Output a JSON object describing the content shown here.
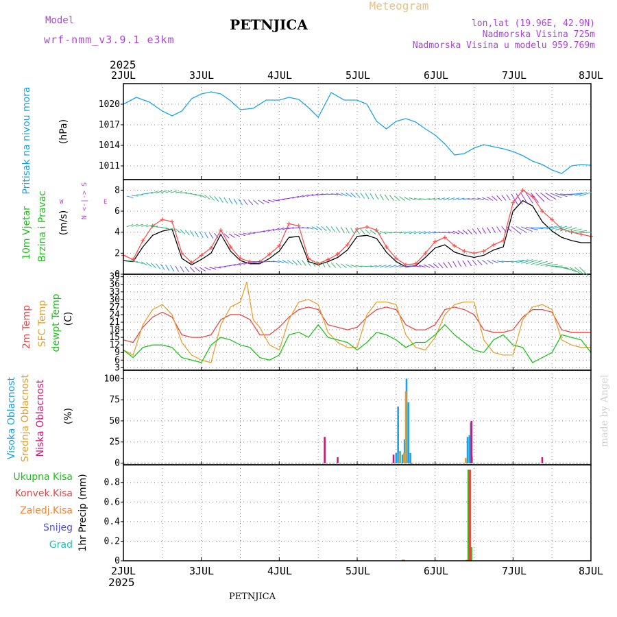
{
  "header": {
    "model_label": "Model",
    "model_name": "wrf-nmm_v3.9.1 e3km",
    "location": "PETNJICA",
    "product": "Meteogram",
    "lonlat": "lon,lat (19.96E, 42.9N)",
    "elevation": "Nadmorska Visina 725m",
    "model_elevation": "Nadmorska Visina u modelu 959.769m",
    "year": "2025",
    "footer_location": "PETNJICA",
    "watermark": "made by Angel"
  },
  "colors": {
    "pressure": "#1aa3e8",
    "wind_label": "#19c519",
    "temp2m": "#ee4444",
    "sfc_temp": "#e8a030",
    "dewpoint": "#19c519",
    "cloud_high": "#1aa3e8",
    "cloud_mid": "#e0a030",
    "cloud_low": "#d4166e",
    "precip_total": "#19c519",
    "precip_conv": "#ee4444",
    "precip_frz": "#ff7f2a",
    "snow": "#5050e0",
    "graupel": "#20c0b0",
    "compass": "#c040e0"
  },
  "x_axis": {
    "labels": [
      "2JUL",
      "3JUL",
      "4JUL",
      "5JUL",
      "6JUL",
      "7JUL",
      "8JUL"
    ]
  },
  "panels": {
    "pressure": {
      "title": "Pritisak na nivou mora",
      "unit": "(hPa)"
    },
    "wind": {
      "title1": "10m Vjetar",
      "title2": "Brzina i Pravac",
      "unit": "(m/s)",
      "compass_ns": "N <-|-> S",
      "compass_w": "W",
      "compass_e": "E"
    },
    "temp": {
      "label1": "2m Temp",
      "label2": "SFC Temp",
      "label3": "dewpt Temp",
      "unit": "(C)"
    },
    "cloud": {
      "label1": "Visoka Oblacnost",
      "label2": "Srednja Oblacnost",
      "label3": "Niska Oblacnost",
      "unit": "(%)"
    },
    "precip": {
      "label1": "Ukupna Kisa",
      "label2": "Konvek.Kisa",
      "label3": "Zaledj.Kisa",
      "label4": "Snijeg",
      "label5": "Grad",
      "unit": "1hr Precip (mm)"
    }
  },
  "chart_data": [
    {
      "type": "line",
      "title": "Pritisak na nivou mora",
      "ylabel": "(hPa)",
      "xlim": [
        0,
        144
      ],
      "ylim": [
        1009,
        1023
      ],
      "yticks": [
        1011,
        1014,
        1017,
        1020
      ],
      "series": [
        {
          "name": "pressure",
          "x": [
            0,
            4,
            8,
            12,
            15,
            18,
            21,
            24,
            27,
            30,
            33,
            36,
            40,
            44,
            48,
            51,
            54,
            57,
            60,
            64,
            68,
            72,
            75,
            78,
            81,
            84,
            87,
            90,
            93,
            96,
            99,
            102,
            105,
            108,
            111,
            114,
            117,
            120,
            123,
            126,
            129,
            132,
            135,
            138,
            141,
            144
          ],
          "values": [
            1020,
            1021,
            1020.3,
            1019,
            1018.3,
            1019,
            1020.8,
            1021.5,
            1021.8,
            1021.5,
            1020.5,
            1019.2,
            1019.4,
            1020.6,
            1020.6,
            1021,
            1020.7,
            1019.5,
            1018.1,
            1021.7,
            1020.6,
            1020.6,
            1020,
            1017.5,
            1016.4,
            1017.5,
            1017.9,
            1017.4,
            1016.4,
            1015.5,
            1014.2,
            1012.6,
            1012.8,
            1013.6,
            1014.1,
            1013.8,
            1013.5,
            1013.1,
            1012.5,
            1011.7,
            1011.2,
            1010.4,
            1009.9,
            1011,
            1011.2,
            1011.1
          ]
        }
      ]
    },
    {
      "type": "line",
      "title": "10m Vjetar Brzina i Pravac",
      "ylabel": "(m/s)",
      "xlim": [
        0,
        144
      ],
      "ylim": [
        0,
        9
      ],
      "yticks": [
        0,
        2,
        4,
        6,
        8
      ],
      "series": [
        {
          "name": "mean wind speed",
          "x": [
            0,
            3,
            6,
            9,
            12,
            15,
            18,
            21,
            24,
            27,
            30,
            33,
            36,
            39,
            42,
            45,
            48,
            51,
            54,
            57,
            60,
            63,
            66,
            69,
            72,
            75,
            78,
            81,
            84,
            87,
            90,
            93,
            96,
            99,
            102,
            105,
            108,
            111,
            114,
            117,
            120,
            123,
            126,
            129,
            132,
            135,
            138,
            141,
            144
          ],
          "values": [
            1.3,
            1.2,
            2.6,
            3.7,
            4.1,
            4.3,
            1.5,
            0.9,
            1.4,
            2.0,
            3.8,
            2.2,
            1.3,
            1.0,
            1.0,
            1.5,
            2.2,
            3.5,
            3.6,
            1.2,
            0.9,
            1.2,
            1.6,
            2.3,
            3.6,
            3.7,
            3.4,
            2.1,
            1.2,
            0.7,
            0.8,
            1.6,
            2.5,
            2.8,
            2.1,
            1.8,
            1.6,
            1.8,
            2.3,
            2.6,
            6.0,
            7.0,
            6.5,
            5.0,
            4.1,
            3.5,
            3.2,
            3.0,
            3.0
          ]
        },
        {
          "name": "wind gust",
          "x": [
            0,
            3,
            6,
            9,
            12,
            15,
            18,
            21,
            24,
            27,
            30,
            33,
            36,
            39,
            42,
            45,
            48,
            51,
            54,
            57,
            60,
            63,
            66,
            69,
            72,
            75,
            78,
            81,
            84,
            87,
            90,
            93,
            96,
            99,
            102,
            105,
            108,
            111,
            114,
            117,
            120,
            123,
            126,
            129,
            132,
            135,
            138,
            141,
            144
          ],
          "values": [
            1.8,
            1.4,
            3.2,
            4.6,
            5.2,
            5.0,
            2.0,
            1.1,
            1.8,
            2.5,
            4.2,
            2.6,
            1.5,
            1.2,
            1.2,
            1.9,
            2.7,
            4.8,
            4.6,
            1.5,
            1.0,
            1.4,
            1.9,
            2.8,
            4.3,
            4.5,
            4.2,
            2.6,
            1.5,
            0.9,
            1.0,
            2.0,
            3.1,
            3.5,
            2.7,
            2.2,
            2.0,
            2.2,
            2.8,
            3.2,
            6.8,
            8.0,
            7.4,
            6.0,
            5.2,
            4.3,
            4.0,
            3.8,
            3.6
          ]
        }
      ]
    },
    {
      "type": "line",
      "title": "Temperature",
      "ylabel": "(C)",
      "xlim": [
        0,
        144
      ],
      "ylim": [
        2,
        40
      ],
      "yticks": [
        3,
        6,
        9,
        12,
        15,
        18,
        21,
        24,
        27,
        30,
        33,
        36,
        39
      ],
      "series": [
        {
          "name": "2m Temp",
          "x": [
            0,
            3,
            6,
            9,
            12,
            15,
            18,
            21,
            24,
            27,
            30,
            33,
            36,
            39,
            42,
            45,
            48,
            51,
            54,
            57,
            60,
            63,
            66,
            69,
            72,
            75,
            78,
            81,
            84,
            87,
            90,
            93,
            96,
            99,
            102,
            105,
            108,
            111,
            114,
            117,
            120,
            123,
            126,
            129,
            132,
            135,
            138,
            141,
            144
          ],
          "values": [
            14,
            13,
            19,
            23,
            25,
            23,
            16,
            15,
            15,
            16,
            22,
            24,
            24,
            22,
            16,
            16,
            19,
            23,
            26,
            27,
            26,
            20,
            19,
            18,
            19,
            23,
            26,
            27,
            26,
            20,
            18,
            18,
            20,
            26,
            27,
            26,
            24,
            18,
            17,
            17,
            18,
            23,
            26,
            26,
            25,
            18,
            17,
            17,
            17
          ]
        },
        {
          "name": "SFC Temp",
          "x": [
            0,
            3,
            6,
            9,
            12,
            15,
            18,
            21,
            24,
            27,
            30,
            33,
            36,
            38,
            40,
            42,
            45,
            48,
            51,
            54,
            57,
            60,
            63,
            66,
            69,
            72,
            75,
            78,
            81,
            84,
            87,
            90,
            93,
            96,
            99,
            102,
            105,
            108,
            111,
            114,
            117,
            120,
            123,
            126,
            129,
            132,
            135,
            138,
            141,
            144
          ],
          "values": [
            10,
            8,
            20,
            26,
            28,
            24,
            13,
            8,
            6,
            5,
            20,
            27,
            29,
            37,
            22,
            19,
            12,
            10,
            22,
            29,
            30,
            28,
            17,
            13,
            11,
            11,
            24,
            29,
            29,
            28,
            16,
            11,
            10,
            15,
            24,
            28,
            29,
            29,
            14,
            9,
            8,
            8,
            22,
            27,
            28,
            26,
            14,
            12,
            11,
            11
          ]
        },
        {
          "name": "dewpt Temp",
          "x": [
            0,
            3,
            6,
            9,
            12,
            15,
            18,
            21,
            24,
            27,
            30,
            33,
            36,
            39,
            42,
            45,
            48,
            51,
            54,
            57,
            60,
            63,
            66,
            69,
            72,
            75,
            78,
            81,
            84,
            87,
            90,
            93,
            96,
            99,
            102,
            105,
            108,
            111,
            114,
            117,
            120,
            123,
            126,
            129,
            132,
            135,
            138,
            141,
            144
          ],
          "values": [
            10,
            7,
            11,
            12,
            12,
            11,
            7,
            6,
            5,
            12,
            15,
            14,
            12,
            11,
            7,
            6,
            8,
            16,
            17,
            15,
            20,
            15,
            14,
            13,
            10,
            13,
            17,
            16,
            14,
            11,
            13,
            13,
            16,
            20,
            16,
            13,
            10,
            9,
            14,
            16,
            12,
            11,
            5,
            7,
            9,
            16,
            15,
            14,
            9
          ]
        }
      ]
    },
    {
      "type": "bar",
      "title": "Oblacnost",
      "ylabel": "(%)",
      "xlim": [
        0,
        144
      ],
      "ylim": [
        -2,
        110
      ],
      "yticks": [
        0,
        25,
        50,
        75,
        100
      ],
      "series": [
        {
          "name": "Visoka Oblacnost",
          "x": [
            84,
            84.6,
            85.2,
            86,
            86.6,
            87.2,
            87.8,
            88.4,
            106,
            106.6,
            107
          ],
          "values": [
            12,
            67,
            14,
            10,
            28,
            100,
            72,
            12,
            31,
            33,
            48
          ]
        },
        {
          "name": "Srednja Oblacnost",
          "x": [
            85,
            86.4,
            87,
            105.4,
            107.4
          ],
          "values": [
            12,
            12,
            85,
            6,
            8
          ]
        },
        {
          "name": "Niska Oblacnost",
          "x": [
            62,
            66,
            83.2,
            88.6,
            107.2,
            129
          ],
          "values": [
            31,
            7,
            10,
            0,
            50,
            7
          ]
        }
      ]
    },
    {
      "type": "bar",
      "title": "1hr Precip",
      "ylabel": "1hr Precip (mm)",
      "xlim": [
        0,
        144
      ],
      "ylim": [
        0,
        0.98
      ],
      "yticks": [
        0,
        0.2,
        0.4,
        0.6,
        0.8
      ],
      "series": [
        {
          "name": "Ukupna Kisa",
          "x": [
            86,
            106.3,
            107.1
          ],
          "values": [
            0.01,
            0.93,
            0.14
          ]
        },
        {
          "name": "Konvek.Kisa",
          "x": [
            86.4,
            106.7
          ],
          "values": [
            0.01,
            0.93
          ]
        },
        {
          "name": "Zaledj.Kisa",
          "x": [
            105.8
          ],
          "values": [
            0.01
          ]
        }
      ]
    }
  ]
}
